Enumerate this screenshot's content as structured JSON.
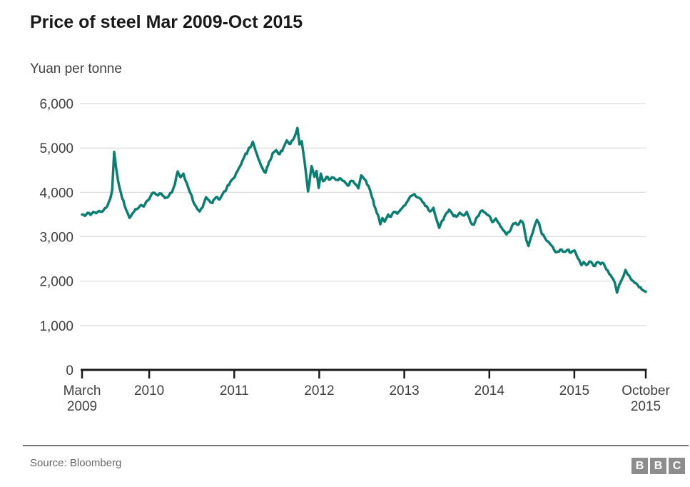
{
  "header": {
    "title": "Price of steel Mar 2009-Oct 2015",
    "subtitle": "Yuan per tonne"
  },
  "footer": {
    "source": "Source: Bloomberg",
    "logo_letters": [
      "B",
      "B",
      "C"
    ]
  },
  "colors": {
    "line": "#0a7e70",
    "grid": "#d4d4d4",
    "axis": "#1a1a1a",
    "title_text": "#1a1a1a",
    "label_text": "#404040",
    "source_text": "#696969",
    "divider": "#757575",
    "logo_bg": "#8d8d8d",
    "background": "#ffffff"
  },
  "chart_data": {
    "type": "line",
    "title": "Price of steel Mar 2009-Oct 2015",
    "ylabel": "Yuan per tonne",
    "xlabel": "",
    "grid": "horizontal",
    "legend": "none",
    "x_axis": {
      "range": [
        2009.21,
        2015.84
      ],
      "ticks": [
        {
          "x": 2009.21,
          "lines": [
            "March",
            "2009"
          ]
        },
        {
          "x": 2010.0,
          "lines": [
            "2010"
          ]
        },
        {
          "x": 2011.0,
          "lines": [
            "2011"
          ]
        },
        {
          "x": 2012.0,
          "lines": [
            "2012"
          ]
        },
        {
          "x": 2013.0,
          "lines": [
            "2013"
          ]
        },
        {
          "x": 2014.0,
          "lines": [
            "2014"
          ]
        },
        {
          "x": 2015.0,
          "lines": [
            "2015"
          ]
        },
        {
          "x": 2015.84,
          "lines": [
            "October",
            "2015"
          ]
        }
      ]
    },
    "y_axis": {
      "min": 0,
      "max": 6000,
      "step": 1000,
      "tick_labels": [
        "0",
        "1,000",
        "2,000",
        "3,000",
        "4,000",
        "5,000",
        "6,000"
      ]
    },
    "series": [
      {
        "name": "Steel price (yuan per tonne)",
        "points": [
          [
            2009.21,
            3500
          ],
          [
            2009.243,
            3470
          ],
          [
            2009.277,
            3540
          ],
          [
            2009.31,
            3490
          ],
          [
            2009.343,
            3560
          ],
          [
            2009.377,
            3530
          ],
          [
            2009.41,
            3580
          ],
          [
            2009.443,
            3560
          ],
          [
            2009.477,
            3640
          ],
          [
            2009.51,
            3700
          ],
          [
            2009.543,
            3860
          ],
          [
            2009.564,
            4050
          ],
          [
            2009.588,
            4910
          ],
          [
            2009.61,
            4550
          ],
          [
            2009.635,
            4250
          ],
          [
            2009.668,
            3980
          ],
          [
            2009.71,
            3700
          ],
          [
            2009.768,
            3425
          ],
          [
            2009.81,
            3540
          ],
          [
            2009.852,
            3620
          ],
          [
            2009.893,
            3700
          ],
          [
            2009.935,
            3680
          ],
          [
            2009.977,
            3810
          ],
          [
            2010.018,
            3920
          ],
          [
            2010.06,
            3990
          ],
          [
            2010.102,
            3930
          ],
          [
            2010.143,
            3970
          ],
          [
            2010.185,
            3870
          ],
          [
            2010.227,
            3910
          ],
          [
            2010.268,
            4000
          ],
          [
            2010.302,
            4180
          ],
          [
            2010.335,
            4470
          ],
          [
            2010.368,
            4340
          ],
          [
            2010.402,
            4420
          ],
          [
            2010.443,
            4200
          ],
          [
            2010.485,
            3980
          ],
          [
            2010.527,
            3750
          ],
          [
            2010.568,
            3620
          ],
          [
            2010.593,
            3570
          ],
          [
            2010.627,
            3660
          ],
          [
            2010.668,
            3890
          ],
          [
            2010.702,
            3820
          ],
          [
            2010.743,
            3760
          ],
          [
            2010.785,
            3890
          ],
          [
            2010.827,
            3840
          ],
          [
            2010.868,
            3980
          ],
          [
            2010.91,
            4090
          ],
          [
            2010.952,
            4230
          ],
          [
            2010.993,
            4320
          ],
          [
            2011.035,
            4470
          ],
          [
            2011.077,
            4620
          ],
          [
            2011.118,
            4800
          ],
          [
            2011.16,
            4940
          ],
          [
            2011.202,
            5060
          ],
          [
            2011.218,
            5140
          ],
          [
            2011.252,
            4930
          ],
          [
            2011.285,
            4750
          ],
          [
            2011.327,
            4560
          ],
          [
            2011.368,
            4440
          ],
          [
            2011.41,
            4690
          ],
          [
            2011.452,
            4880
          ],
          [
            2011.493,
            4950
          ],
          [
            2011.535,
            4860
          ],
          [
            2011.577,
            5000
          ],
          [
            2011.618,
            5170
          ],
          [
            2011.66,
            5090
          ],
          [
            2011.702,
            5220
          ],
          [
            2011.743,
            5450
          ],
          [
            2011.768,
            5080
          ],
          [
            2011.793,
            5150
          ],
          [
            2011.827,
            4700
          ],
          [
            2011.868,
            4020
          ],
          [
            2011.91,
            4590
          ],
          [
            2011.943,
            4350
          ],
          [
            2011.968,
            4480
          ],
          [
            2011.993,
            4100
          ],
          [
            2012.018,
            4420
          ],
          [
            2012.043,
            4250
          ],
          [
            2012.085,
            4350
          ],
          [
            2012.127,
            4290
          ],
          [
            2012.168,
            4330
          ],
          [
            2012.21,
            4280
          ],
          [
            2012.252,
            4310
          ],
          [
            2012.293,
            4250
          ],
          [
            2012.335,
            4150
          ],
          [
            2012.377,
            4260
          ],
          [
            2012.418,
            4190
          ],
          [
            2012.46,
            4090
          ],
          [
            2012.493,
            4380
          ],
          [
            2012.535,
            4290
          ],
          [
            2012.577,
            4150
          ],
          [
            2012.618,
            3900
          ],
          [
            2012.66,
            3640
          ],
          [
            2012.693,
            3480
          ],
          [
            2012.718,
            3280
          ],
          [
            2012.743,
            3420
          ],
          [
            2012.768,
            3340
          ],
          [
            2012.81,
            3500
          ],
          [
            2012.843,
            3450
          ],
          [
            2012.877,
            3560
          ],
          [
            2012.918,
            3520
          ],
          [
            2012.96,
            3620
          ],
          [
            2013.01,
            3710
          ],
          [
            2013.052,
            3850
          ],
          [
            2013.093,
            3930
          ],
          [
            2013.118,
            3960
          ],
          [
            2013.152,
            3890
          ],
          [
            2013.193,
            3850
          ],
          [
            2013.218,
            3770
          ],
          [
            2013.26,
            3690
          ],
          [
            2013.302,
            3570
          ],
          [
            2013.343,
            3650
          ],
          [
            2013.377,
            3400
          ],
          [
            2013.41,
            3200
          ],
          [
            2013.443,
            3360
          ],
          [
            2013.485,
            3500
          ],
          [
            2013.527,
            3610
          ],
          [
            2013.568,
            3500
          ],
          [
            2013.61,
            3450
          ],
          [
            2013.652,
            3540
          ],
          [
            2013.693,
            3480
          ],
          [
            2013.735,
            3560
          ],
          [
            2013.777,
            3340
          ],
          [
            2013.818,
            3270
          ],
          [
            2013.86,
            3450
          ],
          [
            2013.902,
            3580
          ],
          [
            2013.952,
            3540
          ],
          [
            2013.993,
            3480
          ],
          [
            2014.035,
            3330
          ],
          [
            2014.077,
            3410
          ],
          [
            2014.118,
            3290
          ],
          [
            2014.16,
            3150
          ],
          [
            2014.202,
            3050
          ],
          [
            2014.235,
            3110
          ],
          [
            2014.268,
            3250
          ],
          [
            2014.31,
            3310
          ],
          [
            2014.343,
            3270
          ],
          [
            2014.368,
            3360
          ],
          [
            2014.402,
            3280
          ],
          [
            2014.435,
            2930
          ],
          [
            2014.46,
            2790
          ],
          [
            2014.485,
            2960
          ],
          [
            2014.51,
            3090
          ],
          [
            2014.535,
            3260
          ],
          [
            2014.56,
            3380
          ],
          [
            2014.585,
            3300
          ],
          [
            2014.618,
            3060
          ],
          [
            2014.66,
            2950
          ],
          [
            2014.693,
            2890
          ],
          [
            2014.727,
            2810
          ],
          [
            2014.76,
            2710
          ],
          [
            2014.793,
            2650
          ],
          [
            2014.835,
            2710
          ],
          [
            2014.877,
            2660
          ],
          [
            2014.918,
            2700
          ],
          [
            2014.96,
            2640
          ],
          [
            2015.002,
            2690
          ],
          [
            2015.043,
            2510
          ],
          [
            2015.085,
            2360
          ],
          [
            2015.11,
            2430
          ],
          [
            2015.143,
            2360
          ],
          [
            2015.177,
            2440
          ],
          [
            2015.21,
            2400
          ],
          [
            2015.243,
            2340
          ],
          [
            2015.277,
            2430
          ],
          [
            2015.31,
            2380
          ],
          [
            2015.343,
            2400
          ],
          [
            2015.377,
            2260
          ],
          [
            2015.41,
            2160
          ],
          [
            2015.443,
            2080
          ],
          [
            2015.477,
            1960
          ],
          [
            2015.502,
            1740
          ],
          [
            2015.527,
            1910
          ],
          [
            2015.552,
            2010
          ],
          [
            2015.577,
            2110
          ],
          [
            2015.602,
            2250
          ],
          [
            2015.627,
            2150
          ],
          [
            2015.66,
            2060
          ],
          [
            2015.693,
            2000
          ],
          [
            2015.727,
            1950
          ],
          [
            2015.76,
            1860
          ],
          [
            2015.793,
            1810
          ],
          [
            2015.818,
            1780
          ],
          [
            2015.84,
            1760
          ]
        ]
      }
    ]
  }
}
